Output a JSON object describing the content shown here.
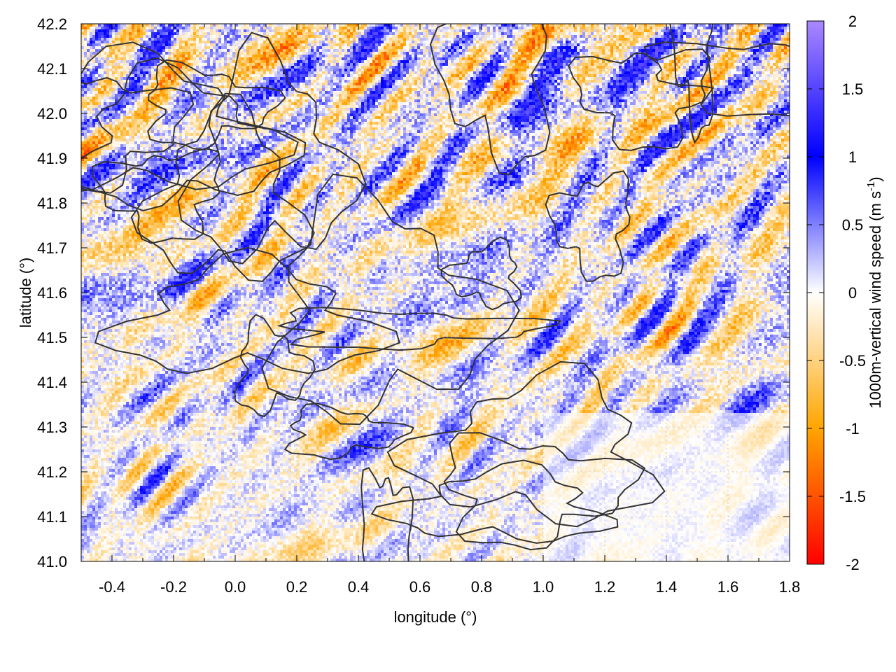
{
  "chart_data": {
    "type": "heatmap",
    "xlabel": "longitude (°)",
    "ylabel": "latitude (°)",
    "colorbar_label_main": "1000m-vertical wind speed (m s",
    "colorbar_label_sup": "-1",
    "colorbar_label_end": ")",
    "xlim": [
      -0.5,
      1.8
    ],
    "ylim": [
      41.0,
      42.2
    ],
    "zlim": [
      -2,
      2
    ],
    "x_ticks": [
      -0.4,
      -0.2,
      0.0,
      0.2,
      0.4,
      0.6,
      0.8,
      1.0,
      1.2,
      1.4,
      1.6,
      1.8
    ],
    "x_tick_labels": [
      "-0.4",
      "-0.2",
      "0.0",
      "0.2",
      "0.4",
      "0.6",
      "0.8",
      "1.0",
      "1.2",
      "1.4",
      "1.6",
      "1.8"
    ],
    "y_ticks": [
      41.0,
      41.1,
      41.2,
      41.3,
      41.4,
      41.5,
      41.6,
      41.7,
      41.8,
      41.9,
      42.0,
      42.1,
      42.2
    ],
    "y_tick_labels": [
      "41.0",
      "41.1",
      "41.2",
      "41.3",
      "41.4",
      "41.5",
      "41.6",
      "41.7",
      "41.8",
      "41.9",
      "42.0",
      "42.1",
      "42.2"
    ],
    "colorbar_ticks": [
      2,
      1.5,
      1,
      0.5,
      0,
      -0.5,
      -1,
      -1.5,
      -2
    ],
    "colorbar_tick_labels": [
      "2",
      "1.5",
      "1",
      "0.5",
      "0",
      "-0.5",
      "-1",
      "-1.5",
      "-2"
    ],
    "colormap": [
      "#ff0000",
      "#ffa500",
      "#ffffff",
      "#0000ff",
      "#aa88ff"
    ],
    "grid": true,
    "contour_color": "#333333",
    "overlay": "terrain contour lines"
  }
}
